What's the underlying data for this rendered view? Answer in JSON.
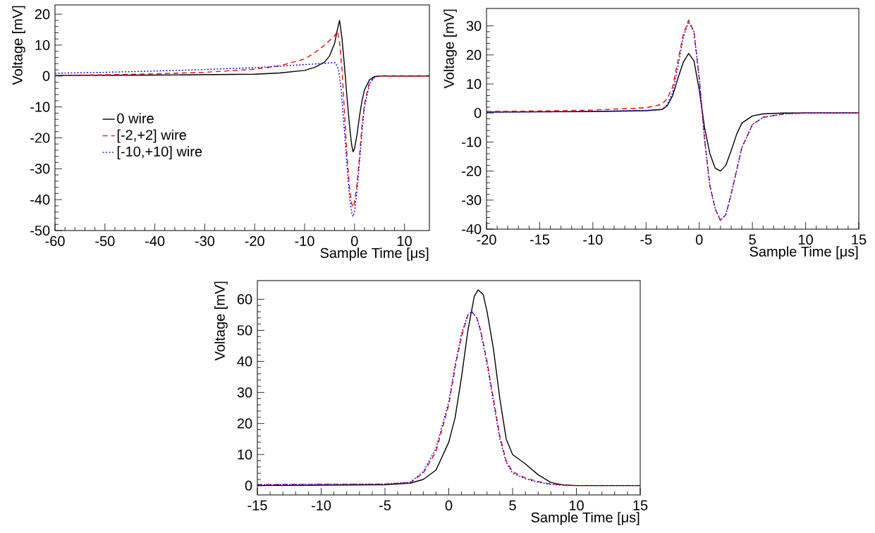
{
  "chart_data": [
    {
      "type": "line",
      "xlabel": "Sample Time [μs]",
      "ylabel": "Voltage [mV]",
      "xlim": [
        -60,
        15
      ],
      "ylim": [
        -50,
        23
      ],
      "xticks": [
        -60,
        -50,
        -40,
        -30,
        -20,
        -10,
        0,
        10
      ],
      "yticks": [
        -50,
        -40,
        -30,
        -20,
        -10,
        0,
        10,
        20
      ],
      "legend": "left",
      "series": [
        {
          "name": "0 wire",
          "color": "#000000",
          "line_style": "solid",
          "x": [
            -60,
            -40,
            -20,
            -15,
            -10,
            -8,
            -6,
            -5,
            -4,
            -3.5,
            -3,
            -2.5,
            -2,
            -1.5,
            -1,
            -0.6,
            -0.3,
            0,
            0.5,
            1,
            1.5,
            2,
            3,
            4,
            5,
            10,
            15
          ],
          "values": [
            0.2,
            0.3,
            0.6,
            1,
            1.8,
            2.8,
            4.5,
            6.5,
            10.5,
            14.5,
            18,
            12,
            3,
            -7,
            -16,
            -22,
            -24.5,
            -23.5,
            -19,
            -13,
            -8,
            -4.5,
            -1.2,
            -0.2,
            0,
            0,
            0
          ]
        },
        {
          "name": "[-2,+2] wire",
          "color": "#ff0000",
          "line_style": "dashed",
          "x": [
            -60,
            -50,
            -40,
            -30,
            -20,
            -15,
            -10,
            -8,
            -6,
            -5,
            -4,
            -3.4,
            -3,
            -2.5,
            -2,
            -1.5,
            -1,
            -0.6,
            -0.3,
            0,
            0.5,
            1,
            1.5,
            2,
            3,
            4,
            5,
            10,
            15
          ],
          "values": [
            0.2,
            0.4,
            0.7,
            1.2,
            2.2,
            3.3,
            5.5,
            7.5,
            10,
            11.5,
            13,
            14.5,
            11,
            2,
            -12,
            -26,
            -36,
            -41,
            -42.5,
            -41,
            -35,
            -26,
            -16,
            -9,
            -2,
            -0.4,
            0,
            0,
            0
          ]
        },
        {
          "name": "[-10,+10] wire",
          "color": "#0000ff",
          "line_style": "dotted",
          "x": [
            -60,
            -50,
            -40,
            -30,
            -20,
            -15,
            -10,
            -6,
            -4.5,
            -3.8,
            -3.2,
            -2.7,
            -2.2,
            -1.5,
            -1,
            -0.6,
            -0.3,
            0,
            0.5,
            1,
            1.5,
            2,
            3,
            4,
            5
          ],
          "values": [
            0.9,
            1.2,
            1.6,
            2.1,
            2.7,
            3.2,
            3.7,
            4.1,
            4.3,
            4.3,
            2,
            -4,
            -14,
            -29,
            -39,
            -44,
            -45.5,
            -44,
            -37,
            -28,
            -18,
            -10,
            -2.5,
            -0.4,
            0
          ]
        }
      ]
    },
    {
      "type": "line",
      "xlabel": "Sample Time [μs]",
      "ylabel": "Voltage [mV]",
      "xlim": [
        -20,
        15
      ],
      "ylim": [
        -40,
        36
      ],
      "xticks": [
        -20,
        -15,
        -10,
        -5,
        0,
        5,
        10,
        15
      ],
      "yticks": [
        -40,
        -30,
        -20,
        -10,
        0,
        10,
        20,
        30
      ],
      "series": [
        {
          "color": "#000000",
          "line_style": "solid",
          "x": [
            -20,
            -10,
            -5,
            -3.5,
            -3,
            -2.5,
            -2,
            -1.5,
            -1,
            -0.5,
            0,
            0.5,
            1,
            1.5,
            2,
            2.5,
            3,
            3.5,
            4,
            5,
            6,
            8,
            10,
            15
          ],
          "values": [
            0.3,
            0.5,
            0.8,
            1.2,
            2.5,
            6,
            12,
            17.5,
            20.5,
            18,
            8,
            -5,
            -14,
            -19,
            -20,
            -18,
            -13,
            -7.5,
            -3.5,
            -1,
            -0.3,
            0,
            0,
            0
          ]
        },
        {
          "color": "#ff0000",
          "line_style": "dashed",
          "x": [
            -20,
            -15,
            -10,
            -5,
            -3.5,
            -3,
            -2.5,
            -2,
            -1.5,
            -1,
            -0.5,
            0,
            0.5,
            1,
            1.5,
            2,
            2.5,
            3,
            3.5,
            4,
            5,
            6,
            8,
            10,
            15
          ],
          "values": [
            0.5,
            0.7,
            1,
            1.8,
            3,
            5,
            9,
            18,
            27,
            32,
            28,
            12,
            -9,
            -25,
            -33,
            -37,
            -35,
            -28,
            -20,
            -12,
            -4,
            -1.5,
            -0.3,
            0,
            0
          ]
        },
        {
          "color": "#0000ff",
          "line_style": "dotted",
          "x": [
            -20,
            -15,
            -10,
            -5,
            -3.5,
            -3,
            -2.5,
            -2,
            -1.5,
            -1,
            -0.5,
            0,
            0.5,
            1,
            1.5,
            2,
            2.5,
            3,
            3.5,
            4,
            5,
            6,
            8,
            10,
            15
          ],
          "values": [
            0.3,
            0.4,
            0.6,
            0.9,
            1.2,
            3,
            7,
            16,
            26,
            31.5,
            28,
            12,
            -9,
            -25,
            -33,
            -37,
            -35,
            -28,
            -20,
            -12,
            -4,
            -1.5,
            -0.3,
            0,
            0
          ]
        }
      ]
    },
    {
      "type": "line",
      "xlabel": "Sample Time [μs]",
      "ylabel": "Voltage [mV]",
      "xlim": [
        -15,
        15
      ],
      "ylim": [
        -3,
        66
      ],
      "xticks": [
        -15,
        -10,
        -5,
        0,
        5,
        10,
        15
      ],
      "yticks": [
        0,
        10,
        20,
        30,
        40,
        50,
        60
      ],
      "series": [
        {
          "color": "#000000",
          "line_style": "solid",
          "x": [
            -15,
            -5,
            -3,
            -2,
            -1,
            0,
            0.5,
            1,
            1.5,
            2,
            2.3,
            2.7,
            3,
            3.5,
            4,
            4.5,
            5,
            6,
            7,
            8,
            9,
            10,
            15
          ],
          "values": [
            0,
            0.3,
            0.8,
            2,
            5,
            14,
            22,
            35,
            50,
            61,
            63,
            61.5,
            56,
            44,
            28,
            15,
            10,
            7,
            3.5,
            1,
            0.2,
            0,
            0
          ]
        },
        {
          "color": "#ff0000",
          "line_style": "dashed",
          "x": [
            -15,
            -5,
            -3,
            -2,
            -1,
            0,
            0.5,
            1,
            1.5,
            1.8,
            2.2,
            2.5,
            3,
            3.5,
            4,
            4.5,
            5,
            6,
            7,
            8,
            9,
            10,
            15
          ],
          "values": [
            0.3,
            0.5,
            1,
            4,
            11,
            26,
            38,
            48,
            55,
            56,
            54,
            50,
            40,
            28,
            16,
            8,
            4.5,
            2.5,
            1.3,
            0.5,
            0.2,
            0,
            0
          ]
        },
        {
          "color": "#0000ff",
          "line_style": "dotted",
          "x": [
            -15,
            -5,
            -3,
            -2,
            -1,
            0,
            0.5,
            1,
            1.5,
            1.8,
            2.2,
            2.5,
            3,
            3.5,
            4,
            4.5,
            5,
            6,
            7,
            8,
            9,
            10,
            15
          ],
          "values": [
            0.3,
            0.5,
            1.1,
            4.5,
            12,
            27,
            39,
            49,
            55,
            56,
            54,
            49.5,
            39,
            27,
            15,
            7.5,
            4,
            2.2,
            1.1,
            0.4,
            0.1,
            0,
            0
          ]
        }
      ]
    }
  ]
}
